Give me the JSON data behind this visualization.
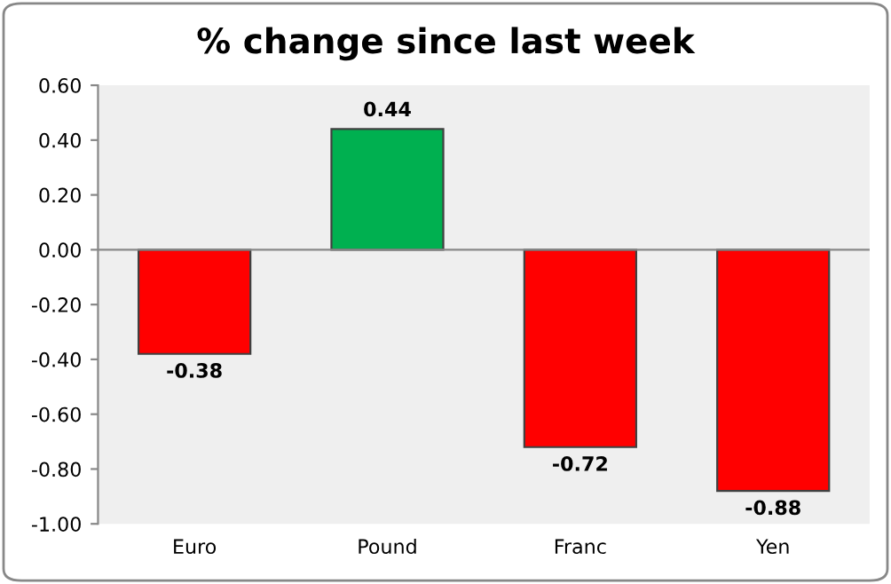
{
  "chart_data": {
    "type": "bar",
    "title": "% change since last week",
    "categories": [
      "Euro",
      "Pound",
      "Franc",
      "Yen"
    ],
    "values": [
      -0.38,
      0.44,
      -0.72,
      -0.88
    ],
    "colors": [
      "#ff0000",
      "#00b050",
      "#ff0000",
      "#ff0000"
    ],
    "ylim": [
      -1.0,
      0.6
    ],
    "yticks": [
      {
        "value": -1.0,
        "label": "-1.00"
      },
      {
        "value": -0.8,
        "label": "-0.80"
      },
      {
        "value": -0.6,
        "label": "-0.60"
      },
      {
        "value": -0.4,
        "label": "-0.40"
      },
      {
        "value": -0.2,
        "label": "-0.20"
      },
      {
        "value": 0.0,
        "label": "0.00"
      },
      {
        "value": 0.2,
        "label": "0.20"
      },
      {
        "value": 0.4,
        "label": "0.40"
      },
      {
        "value": 0.6,
        "label": "0.60"
      }
    ],
    "data_labels": true,
    "legend": false
  }
}
